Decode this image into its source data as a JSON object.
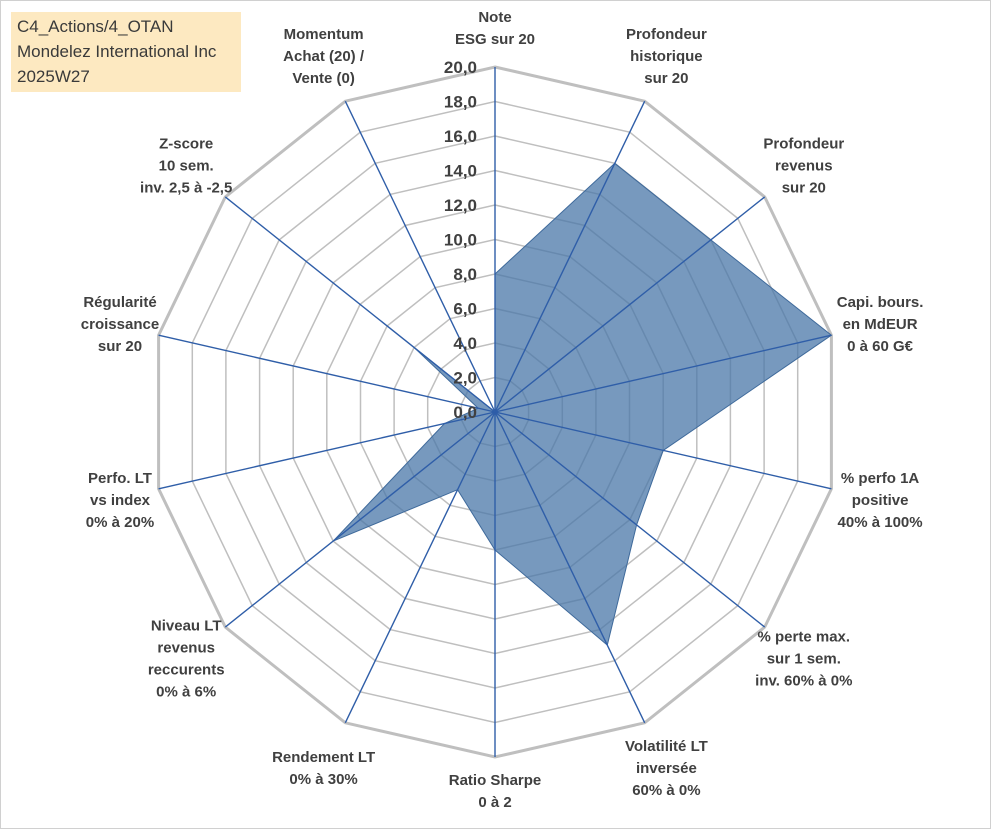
{
  "header": {
    "lines": [
      "C4_Actions/4_OTAN",
      "Mondelez International Inc",
      "2025W27"
    ]
  },
  "chart_data": {
    "type": "radar",
    "rmin": 0,
    "rmax": 20,
    "tick_step": 2,
    "ticks": [
      "0,0",
      "2,0",
      "4,0",
      "6,0",
      "8,0",
      "10,0",
      "12,0",
      "14,0",
      "16,0",
      "18,0",
      "20,0"
    ],
    "grid": true,
    "fill_color": "#4a77a8",
    "grid_color": "#bfbfbf",
    "spoke_color": "#2f5ea8",
    "axes": [
      {
        "label": [
          "Note",
          "ESG sur 20"
        ],
        "value": 8.0
      },
      {
        "label": [
          "Profondeur",
          "historique",
          "sur 20"
        ],
        "value": 16.0
      },
      {
        "label": [
          "Profondeur",
          "revenus",
          "sur 20"
        ],
        "value": 16.0
      },
      {
        "label": [
          "Capi. bours.",
          "en MdEUR",
          "0 à 60 G€"
        ],
        "value": 20.0
      },
      {
        "label": [
          "% perfo 1A",
          "positive",
          "40% à 100%"
        ],
        "value": 10.0
      },
      {
        "label": [
          "% perte max.",
          "sur 1 sem.",
          "inv. 60% à 0%"
        ],
        "value": 10.5
      },
      {
        "label": [
          "Volatilité LT",
          "inversée",
          "60% à 0%"
        ],
        "value": 15.0
      },
      {
        "label": [
          "Ratio Sharpe",
          "0 à 2"
        ],
        "value": 8.0
      },
      {
        "label": [
          "Rendement LT",
          "0% à 30%"
        ],
        "value": 5.0
      },
      {
        "label": [
          "Niveau LT",
          "revenus",
          "reccurents",
          "0% à 6%"
        ],
        "value": 12.0
      },
      {
        "label": [
          "Perfo. LT",
          "vs index",
          "0% à 20%"
        ],
        "value": 3.0
      },
      {
        "label": [
          "Régularité",
          "croissance",
          "sur 20"
        ],
        "value": 1.0
      },
      {
        "label": [
          "Z-score",
          "10 sem.",
          "inv. 2,5 à -2,5"
        ],
        "value": 6.0
      },
      {
        "label": [
          "Momentum",
          "Achat (20) /",
          "Vente (0)"
        ],
        "value": 0.0
      }
    ]
  }
}
